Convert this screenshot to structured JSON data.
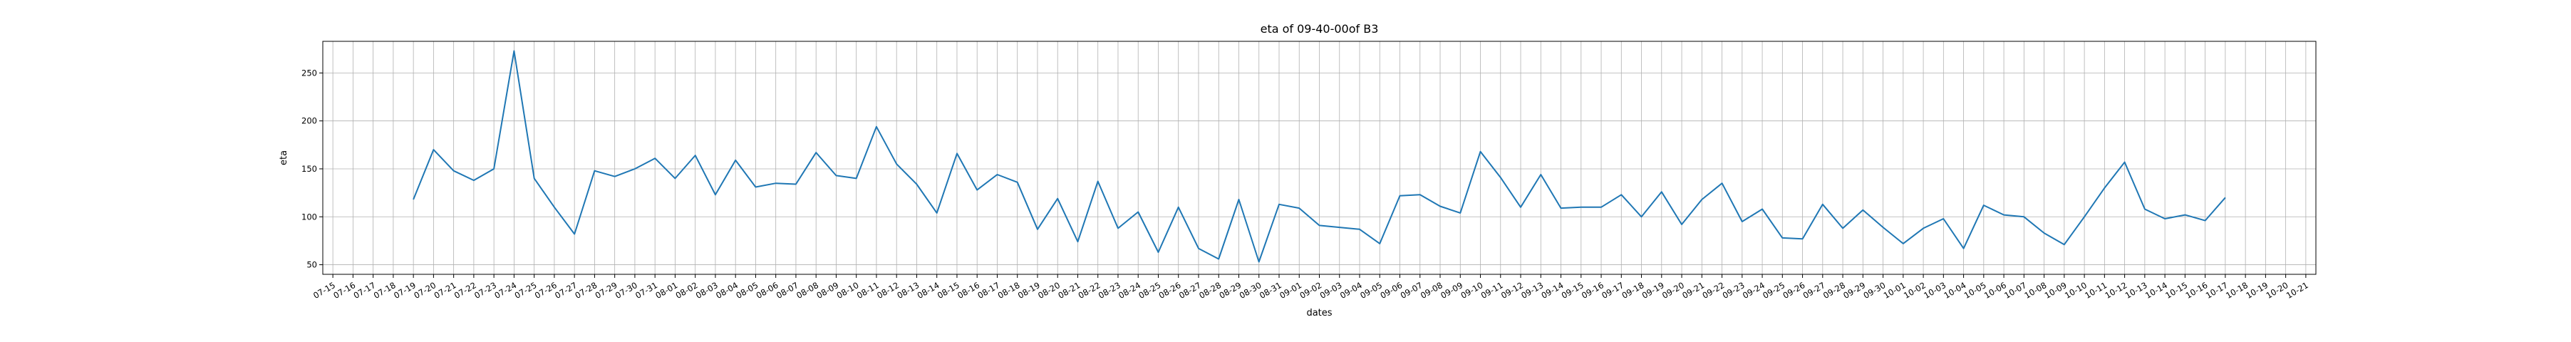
{
  "chart_data": {
    "type": "line",
    "title": "eta of 09-40-00of B3",
    "xlabel": "dates",
    "ylabel": "eta",
    "grid": true,
    "line_color": "#1f77b4",
    "x_ticks": [
      "07-15",
      "07-16",
      "07-17",
      "07-18",
      "07-19",
      "07-20",
      "07-21",
      "07-22",
      "07-23",
      "07-24",
      "07-25",
      "07-26",
      "07-27",
      "07-28",
      "07-29",
      "07-30",
      "07-31",
      "08-01",
      "08-02",
      "08-03",
      "08-04",
      "08-05",
      "08-06",
      "08-07",
      "08-08",
      "08-09",
      "08-10",
      "08-11",
      "08-12",
      "08-13",
      "08-14",
      "08-15",
      "08-16",
      "08-17",
      "08-18",
      "08-19",
      "08-20",
      "08-21",
      "08-22",
      "08-23",
      "08-24",
      "08-25",
      "08-26",
      "08-27",
      "08-28",
      "08-29",
      "08-30",
      "08-31",
      "09-01",
      "09-02",
      "09-03",
      "09-04",
      "09-05",
      "09-06",
      "09-07",
      "09-08",
      "09-09",
      "09-10",
      "09-11",
      "09-12",
      "09-13",
      "09-14",
      "09-15",
      "09-16",
      "09-17",
      "09-18",
      "09-19",
      "09-20",
      "09-21",
      "09-22",
      "09-23",
      "09-24",
      "09-25",
      "09-26",
      "09-27",
      "09-28",
      "09-29",
      "09-30",
      "10-01",
      "10-02",
      "10-03",
      "10-04",
      "10-05",
      "10-06",
      "10-07",
      "10-08",
      "10-09",
      "10-10",
      "10-11",
      "10-12",
      "10-13",
      "10-14",
      "10-15",
      "10-16",
      "10-17",
      "10-18",
      "10-19",
      "10-20",
      "10-21"
    ],
    "y_ticks": [
      50,
      100,
      150,
      200,
      250
    ],
    "ylim": [
      40,
      283
    ],
    "series": [
      {
        "x": [
          "07-19",
          "07-20",
          "07-21",
          "07-22",
          "07-23",
          "07-24",
          "07-25",
          "07-26",
          "07-27",
          "07-28",
          "07-29",
          "07-30",
          "07-31",
          "08-01",
          "08-02",
          "08-03",
          "08-04",
          "08-05",
          "08-06",
          "08-07",
          "08-08",
          "08-09",
          "08-10",
          "08-11",
          "08-12",
          "08-13",
          "08-14",
          "08-15",
          "08-16",
          "08-17",
          "08-18",
          "08-19",
          "08-20",
          "08-21",
          "08-22",
          "08-23",
          "08-24",
          "08-25",
          "08-26",
          "08-27",
          "08-28",
          "08-29",
          "08-30",
          "08-31",
          "09-01",
          "09-02",
          "09-03",
          "09-04",
          "09-05",
          "09-06",
          "09-07",
          "09-08",
          "09-09",
          "09-10",
          "09-11",
          "09-12",
          "09-13",
          "09-14",
          "09-15",
          "09-16",
          "09-17",
          "09-18",
          "09-19",
          "09-20",
          "09-21",
          "09-22",
          "09-23",
          "09-24",
          "09-25",
          "09-26",
          "09-27",
          "09-28",
          "09-29",
          "09-30",
          "10-01",
          "10-02",
          "10-03",
          "10-04",
          "10-05",
          "10-06",
          "10-07",
          "10-08",
          "10-09",
          "10-10",
          "10-11",
          "10-12",
          "10-13",
          "10-14",
          "10-15",
          "10-16",
          "10-17"
        ],
        "values": [
          118,
          170,
          148,
          138,
          150,
          273,
          140,
          110,
          82,
          148,
          142,
          150,
          161,
          140,
          164,
          123,
          159,
          131,
          135,
          134,
          167,
          143,
          140,
          194,
          155,
          134,
          104,
          166,
          128,
          144,
          136,
          87,
          119,
          74,
          137,
          88,
          105,
          63,
          110,
          67,
          56,
          118,
          53,
          113,
          109,
          91,
          89,
          87,
          72,
          122,
          123,
          111,
          104,
          168,
          141,
          110,
          144,
          109,
          110,
          110,
          123,
          100,
          126,
          92,
          118,
          135,
          95,
          108,
          78,
          77,
          113,
          88,
          107,
          89,
          72,
          88,
          98,
          67,
          112,
          102,
          100,
          83,
          71,
          100,
          130,
          157,
          108,
          98,
          102,
          96,
          120
        ]
      }
    ]
  }
}
